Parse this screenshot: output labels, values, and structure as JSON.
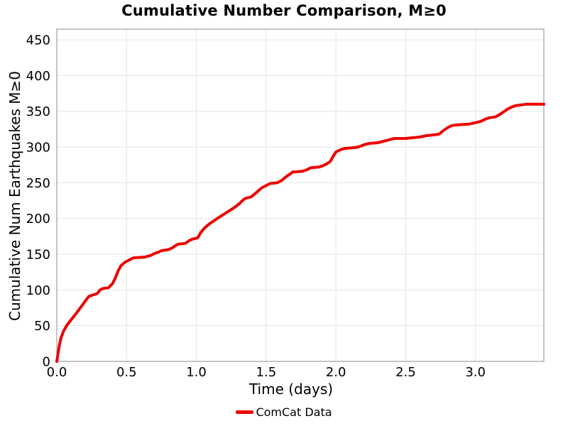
{
  "chart_data": {
    "type": "line",
    "title": "Cumulative Number Comparison, M≥0",
    "xlabel": "Time (days)",
    "ylabel": "Cumulative Num Earthquakes M≥0",
    "xlim": [
      0,
      3.49
    ],
    "ylim": [
      0,
      465
    ],
    "xticks": [
      0.0,
      0.5,
      1.0,
      1.5,
      2.0,
      2.5,
      3.0
    ],
    "xtick_labels": [
      "0.0",
      "0.5",
      "1.0",
      "1.5",
      "2.0",
      "2.5",
      "3.0"
    ],
    "yticks": [
      0,
      50,
      100,
      150,
      200,
      250,
      300,
      350,
      400,
      450
    ],
    "grid": true,
    "colors": {
      "background": "#ffffff",
      "grid": "#e4e4e4",
      "spine": "#a6a6a6",
      "text": "#000000",
      "series_red": "#ee0000"
    },
    "legend": {
      "position": "bottom-center",
      "entries": [
        {
          "label": "ComCat Data",
          "color": "#ee0000"
        }
      ]
    },
    "series": [
      {
        "name": "ComCat Data",
        "color": "#ee0000",
        "line_width": 4,
        "points": [
          [
            0.0,
            0
          ],
          [
            0.005,
            6
          ],
          [
            0.01,
            13
          ],
          [
            0.02,
            24
          ],
          [
            0.03,
            33
          ],
          [
            0.05,
            43
          ],
          [
            0.07,
            50
          ],
          [
            0.09,
            55
          ],
          [
            0.11,
            60
          ],
          [
            0.13,
            65
          ],
          [
            0.15,
            70
          ],
          [
            0.18,
            78
          ],
          [
            0.21,
            86
          ],
          [
            0.23,
            91
          ],
          [
            0.26,
            93
          ],
          [
            0.29,
            95
          ],
          [
            0.31,
            100
          ],
          [
            0.33,
            102
          ],
          [
            0.37,
            103
          ],
          [
            0.4,
            109
          ],
          [
            0.42,
            117
          ],
          [
            0.44,
            127
          ],
          [
            0.46,
            134
          ],
          [
            0.49,
            139
          ],
          [
            0.52,
            142
          ],
          [
            0.55,
            145
          ],
          [
            0.63,
            146
          ],
          [
            0.67,
            148
          ],
          [
            0.7,
            151
          ],
          [
            0.73,
            153
          ],
          [
            0.75,
            155
          ],
          [
            0.79,
            156
          ],
          [
            0.82,
            158
          ],
          [
            0.85,
            162
          ],
          [
            0.87,
            164
          ],
          [
            0.92,
            165
          ],
          [
            0.95,
            169
          ],
          [
            0.97,
            171
          ],
          [
            1.01,
            173
          ],
          [
            1.03,
            180
          ],
          [
            1.06,
            187
          ],
          [
            1.09,
            192
          ],
          [
            1.12,
            196
          ],
          [
            1.15,
            200
          ],
          [
            1.19,
            205
          ],
          [
            1.23,
            210
          ],
          [
            1.27,
            215
          ],
          [
            1.31,
            221
          ],
          [
            1.33,
            225
          ],
          [
            1.35,
            228
          ],
          [
            1.39,
            230
          ],
          [
            1.41,
            233
          ],
          [
            1.44,
            238
          ],
          [
            1.47,
            243
          ],
          [
            1.5,
            246
          ],
          [
            1.53,
            249
          ],
          [
            1.58,
            250
          ],
          [
            1.61,
            253
          ],
          [
            1.64,
            258
          ],
          [
            1.67,
            262
          ],
          [
            1.69,
            265
          ],
          [
            1.76,
            266
          ],
          [
            1.79,
            268
          ],
          [
            1.82,
            271
          ],
          [
            1.88,
            272
          ],
          [
            1.91,
            274
          ],
          [
            1.94,
            277
          ],
          [
            1.96,
            280
          ],
          [
            1.98,
            287
          ],
          [
            2.0,
            293
          ],
          [
            2.03,
            296
          ],
          [
            2.06,
            298
          ],
          [
            2.12,
            299
          ],
          [
            2.16,
            300
          ],
          [
            2.2,
            303
          ],
          [
            2.24,
            305
          ],
          [
            2.3,
            306
          ],
          [
            2.34,
            308
          ],
          [
            2.38,
            310
          ],
          [
            2.42,
            312
          ],
          [
            2.5,
            312
          ],
          [
            2.55,
            313
          ],
          [
            2.6,
            314
          ],
          [
            2.65,
            316
          ],
          [
            2.7,
            317
          ],
          [
            2.74,
            318
          ],
          [
            2.77,
            323
          ],
          [
            2.8,
            327
          ],
          [
            2.83,
            330
          ],
          [
            2.87,
            331
          ],
          [
            2.95,
            332
          ],
          [
            3.0,
            334
          ],
          [
            3.04,
            336
          ],
          [
            3.07,
            339
          ],
          [
            3.1,
            341
          ],
          [
            3.14,
            342
          ],
          [
            3.17,
            345
          ],
          [
            3.2,
            349
          ],
          [
            3.23,
            353
          ],
          [
            3.26,
            356
          ],
          [
            3.29,
            358
          ],
          [
            3.33,
            359
          ],
          [
            3.37,
            360
          ],
          [
            3.49,
            360
          ]
        ]
      }
    ]
  }
}
